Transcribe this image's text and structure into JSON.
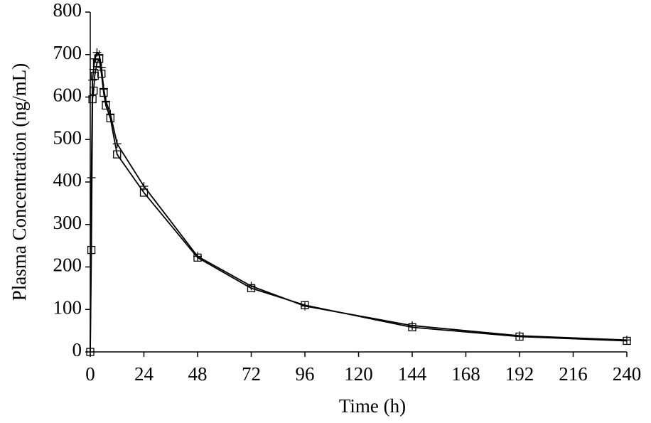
{
  "chart_data": {
    "type": "line",
    "xlabel": "Time (h)",
    "ylabel": "Plasma Concentration (ng/mL)",
    "xlim": [
      0,
      240
    ],
    "xticks": [
      0,
      24,
      48,
      72,
      96,
      120,
      144,
      168,
      192,
      216,
      240
    ],
    "ylim": [
      0,
      800
    ],
    "yticks": [
      0,
      100,
      200,
      300,
      400,
      500,
      600,
      700,
      800
    ],
    "grid": false,
    "x": [
      0,
      0.5,
      1,
      1.5,
      2,
      3,
      4,
      5,
      6,
      7,
      9,
      12,
      24,
      48,
      72,
      96,
      144,
      192,
      240
    ],
    "series": [
      {
        "color": "#000000",
        "marker": "plus",
        "values": [
          0,
          410,
          640,
          665,
          690,
          705,
          700,
          670,
          620,
          590,
          560,
          490,
          390,
          225,
          155,
          108,
          62,
          38,
          28
        ]
      },
      {
        "color": "#000000",
        "marker": "square",
        "values": [
          0,
          240,
          595,
          615,
          650,
          680,
          690,
          655,
          610,
          580,
          550,
          465,
          375,
          222,
          150,
          110,
          58,
          36,
          26
        ]
      }
    ]
  }
}
